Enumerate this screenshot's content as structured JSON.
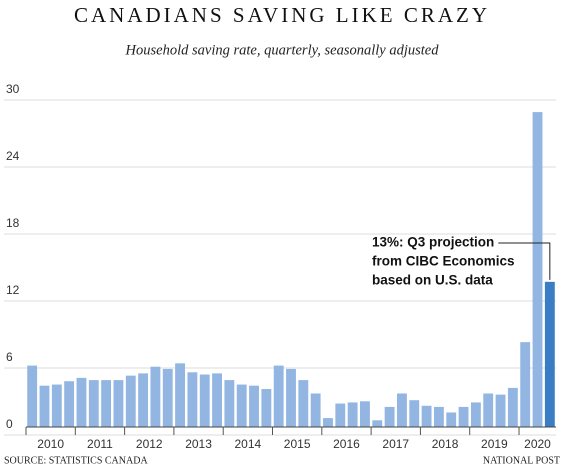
{
  "chart_data": {
    "type": "bar",
    "title": "CANADIANS SAVING LIKE CRAZY",
    "subtitle": "Household saving rate, quarterly, seasonally adjusted",
    "categories": [
      "2010",
      null,
      null,
      null,
      "2011",
      null,
      null,
      null,
      "2012",
      null,
      null,
      null,
      "2013",
      null,
      null,
      null,
      "2014",
      null,
      null,
      null,
      "2015",
      null,
      null,
      null,
      "2016",
      null,
      null,
      null,
      "2017",
      null,
      null,
      null,
      "2018",
      null,
      null,
      null,
      "2019",
      null,
      null,
      null,
      "2020",
      null,
      null
    ],
    "values": [
      5.5,
      3.7,
      3.8,
      4.1,
      4.4,
      4.2,
      4.2,
      4.2,
      4.6,
      4.8,
      5.4,
      5.2,
      5.7,
      4.9,
      4.7,
      4.8,
      4.2,
      3.8,
      3.7,
      3.4,
      5.5,
      5.2,
      4.2,
      3.0,
      0.8,
      2.1,
      2.2,
      2.3,
      0.6,
      1.8,
      3.0,
      2.4,
      1.9,
      1.8,
      1.3,
      1.8,
      2.2,
      3.0,
      2.9,
      3.5,
      7.6,
      28.2,
      13.0
    ],
    "colors": [
      "#92b5e2",
      "#92b5e2",
      "#92b5e2",
      "#92b5e2",
      "#92b5e2",
      "#92b5e2",
      "#92b5e2",
      "#92b5e2",
      "#92b5e2",
      "#92b5e2",
      "#92b5e2",
      "#92b5e2",
      "#92b5e2",
      "#92b5e2",
      "#92b5e2",
      "#92b5e2",
      "#92b5e2",
      "#92b5e2",
      "#92b5e2",
      "#92b5e2",
      "#92b5e2",
      "#92b5e2",
      "#92b5e2",
      "#92b5e2",
      "#92b5e2",
      "#92b5e2",
      "#92b5e2",
      "#92b5e2",
      "#92b5e2",
      "#92b5e2",
      "#92b5e2",
      "#92b5e2",
      "#92b5e2",
      "#92b5e2",
      "#92b5e2",
      "#92b5e2",
      "#92b5e2",
      "#92b5e2",
      "#92b5e2",
      "#92b5e2",
      "#92b5e2",
      "#92b5e2",
      "#3b7dc4"
    ],
    "ylim": [
      0,
      30
    ],
    "yticks": [
      0,
      6,
      12,
      18,
      24,
      30
    ],
    "grid": true,
    "annotation": [
      "13%: Q3 projection",
      "from CIBC Economics",
      "based on U.S. data"
    ],
    "source": "SOURCE: STATISTICS CANADA",
    "credit": "NATIONAL POST"
  }
}
